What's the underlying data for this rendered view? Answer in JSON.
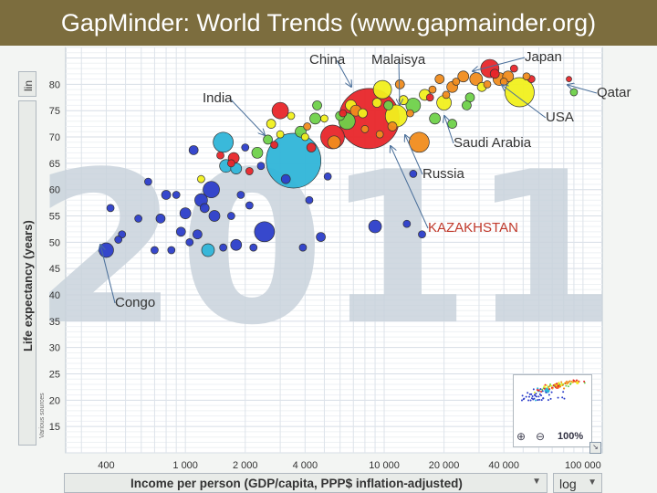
{
  "header": {
    "title": "GapMinder: World Trends (www.gapmainder.org)"
  },
  "controls": {
    "y_scale": "lin",
    "x_scale": "log",
    "x_selector_label": "Income per person (GDP/capita, PPP$ inflation-adjusted)",
    "y_selector_label": "Life expectancy (years)",
    "zoom": "100%",
    "sources_label": "Various sources"
  },
  "colors": {
    "background_year": "#c9d3dc",
    "annotation": "#333333",
    "highlight": "#c0392b",
    "sub_saharan_africa": "#2c3ec9",
    "south_asia": "#2fb5d8",
    "east_asia_pacific": "#e8262a",
    "europe_central_asia": "#f08c1e",
    "middle_east_north_africa": "#6fd14a",
    "america": "#f1f01e"
  },
  "chart_data": {
    "type": "scatter",
    "background_label": "2011",
    "xscale": "log",
    "xlim": [
      250,
      125000
    ],
    "ylim": [
      10,
      87
    ],
    "xticks": [
      400,
      1000,
      2000,
      4000,
      10000,
      20000,
      40000,
      100000
    ],
    "xtick_labels": [
      "400",
      "1 000",
      "2 000",
      "4 000",
      "10 000",
      "20 000",
      "40 000",
      "100 000"
    ],
    "yticks": [
      15,
      20,
      25,
      30,
      35,
      40,
      45,
      50,
      55,
      60,
      65,
      70,
      75,
      80
    ],
    "ytick_labels": [
      "15",
      "20",
      "25",
      "30",
      "35",
      "40",
      "45",
      "50",
      "55",
      "60",
      "65",
      "70",
      "75",
      "80"
    ],
    "xlabel": "Income per person (GDP/capita, PPP$ inflation-adjusted)",
    "ylabel": "Life expectancy (years)",
    "grid": true,
    "points": [
      {
        "x": 3500,
        "y": 65.5,
        "r": 30,
        "c": "south_asia"
      },
      {
        "x": 8400,
        "y": 73.5,
        "r": 33,
        "c": "east_asia_pacific"
      },
      {
        "x": 48000,
        "y": 78.5,
        "r": 16,
        "c": "america"
      },
      {
        "x": 11500,
        "y": 74,
        "r": 12,
        "c": "america"
      },
      {
        "x": 15000,
        "y": 69,
        "r": 11,
        "c": "europe_central_asia"
      },
      {
        "x": 1550,
        "y": 69,
        "r": 11,
        "c": "south_asia"
      },
      {
        "x": 2500,
        "y": 52,
        "r": 11,
        "c": "sub_saharan_africa"
      },
      {
        "x": 5500,
        "y": 70,
        "r": 13,
        "c": "east_asia_pacific"
      },
      {
        "x": 9800,
        "y": 79,
        "r": 10,
        "c": "america"
      },
      {
        "x": 34000,
        "y": 83,
        "r": 10,
        "c": "east_asia_pacific"
      },
      {
        "x": 3000,
        "y": 75,
        "r": 9,
        "c": "east_asia_pacific"
      },
      {
        "x": 1350,
        "y": 60,
        "r": 9,
        "c": "sub_saharan_africa"
      },
      {
        "x": 6500,
        "y": 73,
        "r": 9,
        "c": "middle_east_north_africa"
      },
      {
        "x": 20000,
        "y": 76.5,
        "r": 8,
        "c": "america"
      },
      {
        "x": 14000,
        "y": 76,
        "r": 8,
        "c": "middle_east_north_africa"
      },
      {
        "x": 400,
        "y": 48.5,
        "r": 8,
        "c": "sub_saharan_africa"
      },
      {
        "x": 9000,
        "y": 53,
        "r": 7,
        "c": "sub_saharan_africa"
      },
      {
        "x": 1200,
        "y": 58,
        "r": 7,
        "c": "sub_saharan_africa"
      },
      {
        "x": 1600,
        "y": 64.5,
        "r": 7,
        "c": "south_asia"
      },
      {
        "x": 1300,
        "y": 48.5,
        "r": 7,
        "c": "south_asia"
      },
      {
        "x": 5600,
        "y": 69,
        "r": 7,
        "c": "europe_central_asia"
      },
      {
        "x": 29000,
        "y": 81,
        "r": 7,
        "c": "europe_central_asia"
      },
      {
        "x": 38000,
        "y": 81,
        "r": 7,
        "c": "europe_central_asia"
      },
      {
        "x": 25000,
        "y": 81.5,
        "r": 6,
        "c": "europe_central_asia"
      },
      {
        "x": 42000,
        "y": 81.5,
        "r": 6,
        "c": "europe_central_asia"
      },
      {
        "x": 18000,
        "y": 73.5,
        "r": 6,
        "c": "middle_east_north_africa"
      },
      {
        "x": 16000,
        "y": 78,
        "r": 6,
        "c": "america"
      },
      {
        "x": 22000,
        "y": 79.5,
        "r": 6,
        "c": "europe_central_asia"
      },
      {
        "x": 6800,
        "y": 76,
        "r": 6,
        "c": "america"
      },
      {
        "x": 4500,
        "y": 73.5,
        "r": 6,
        "c": "middle_east_north_africa"
      },
      {
        "x": 7200,
        "y": 75,
        "r": 6,
        "c": "europe_central_asia"
      },
      {
        "x": 12000,
        "y": 80,
        "r": 5,
        "c": "europe_central_asia"
      },
      {
        "x": 19000,
        "y": 81,
        "r": 5,
        "c": "europe_central_asia"
      },
      {
        "x": 31000,
        "y": 79.5,
        "r": 5,
        "c": "america"
      },
      {
        "x": 36000,
        "y": 82,
        "r": 5,
        "c": "east_asia_pacific"
      },
      {
        "x": 27000,
        "y": 77.5,
        "r": 5,
        "c": "middle_east_north_africa"
      },
      {
        "x": 1750,
        "y": 66,
        "r": 6,
        "c": "east_asia_pacific"
      },
      {
        "x": 1100,
        "y": 67.5,
        "r": 5,
        "c": "sub_saharan_africa"
      },
      {
        "x": 1000,
        "y": 55.5,
        "r": 6,
        "c": "sub_saharan_africa"
      },
      {
        "x": 1800,
        "y": 49.5,
        "r": 6,
        "c": "sub_saharan_africa"
      },
      {
        "x": 1400,
        "y": 55,
        "r": 6,
        "c": "sub_saharan_africa"
      },
      {
        "x": 950,
        "y": 52,
        "r": 5,
        "c": "sub_saharan_africa"
      },
      {
        "x": 800,
        "y": 59,
        "r": 5,
        "c": "sub_saharan_africa"
      },
      {
        "x": 750,
        "y": 54.5,
        "r": 5,
        "c": "sub_saharan_africa"
      },
      {
        "x": 1150,
        "y": 51.5,
        "r": 5,
        "c": "sub_saharan_africa"
      },
      {
        "x": 1250,
        "y": 56.5,
        "r": 5,
        "c": "sub_saharan_africa"
      },
      {
        "x": 1900,
        "y": 59,
        "r": 4,
        "c": "sub_saharan_africa"
      },
      {
        "x": 2100,
        "y": 57,
        "r": 4,
        "c": "sub_saharan_africa"
      },
      {
        "x": 1700,
        "y": 55,
        "r": 4,
        "c": "sub_saharan_africa"
      },
      {
        "x": 900,
        "y": 59,
        "r": 4,
        "c": "sub_saharan_africa"
      },
      {
        "x": 650,
        "y": 61.5,
        "r": 4,
        "c": "sub_saharan_africa"
      },
      {
        "x": 580,
        "y": 54.5,
        "r": 4,
        "c": "sub_saharan_africa"
      },
      {
        "x": 480,
        "y": 51.5,
        "r": 4,
        "c": "sub_saharan_africa"
      },
      {
        "x": 460,
        "y": 50.5,
        "r": 4,
        "c": "sub_saharan_africa"
      },
      {
        "x": 420,
        "y": 56.5,
        "r": 4,
        "c": "sub_saharan_africa"
      },
      {
        "x": 700,
        "y": 48.5,
        "r": 4,
        "c": "sub_saharan_africa"
      },
      {
        "x": 850,
        "y": 48.5,
        "r": 4,
        "c": "sub_saharan_africa"
      },
      {
        "x": 1050,
        "y": 50,
        "r": 4,
        "c": "sub_saharan_africa"
      },
      {
        "x": 1550,
        "y": 49,
        "r": 4,
        "c": "sub_saharan_africa"
      },
      {
        "x": 2200,
        "y": 49,
        "r": 4,
        "c": "sub_saharan_africa"
      },
      {
        "x": 4200,
        "y": 58,
        "r": 4,
        "c": "sub_saharan_africa"
      },
      {
        "x": 13000,
        "y": 53.5,
        "r": 4,
        "c": "sub_saharan_africa"
      },
      {
        "x": 15500,
        "y": 51.5,
        "r": 4,
        "c": "sub_saharan_africa"
      },
      {
        "x": 4800,
        "y": 51,
        "r": 5,
        "c": "sub_saharan_africa"
      },
      {
        "x": 3900,
        "y": 49,
        "r": 4,
        "c": "sub_saharan_africa"
      },
      {
        "x": 3200,
        "y": 62,
        "r": 5,
        "c": "sub_saharan_africa"
      },
      {
        "x": 5200,
        "y": 62.5,
        "r": 4,
        "c": "sub_saharan_africa"
      },
      {
        "x": 2400,
        "y": 64.5,
        "r": 4,
        "c": "sub_saharan_africa"
      },
      {
        "x": 14000,
        "y": 63,
        "r": 4,
        "c": "sub_saharan_africa"
      },
      {
        "x": 2000,
        "y": 68,
        "r": 4,
        "c": "sub_saharan_africa"
      },
      {
        "x": 1800,
        "y": 64,
        "r": 6,
        "c": "south_asia"
      },
      {
        "x": 2300,
        "y": 67,
        "r": 6,
        "c": "middle_east_north_africa"
      },
      {
        "x": 2600,
        "y": 69.5,
        "r": 5,
        "c": "middle_east_north_africa"
      },
      {
        "x": 3800,
        "y": 71,
        "r": 6,
        "c": "middle_east_north_africa"
      },
      {
        "x": 4600,
        "y": 76,
        "r": 5,
        "c": "middle_east_north_africa"
      },
      {
        "x": 6000,
        "y": 74,
        "r": 5,
        "c": "middle_east_north_africa"
      },
      {
        "x": 10500,
        "y": 76,
        "r": 5,
        "c": "middle_east_north_africa"
      },
      {
        "x": 22000,
        "y": 72.5,
        "r": 5,
        "c": "middle_east_north_africa"
      },
      {
        "x": 26000,
        "y": 76,
        "r": 5,
        "c": "middle_east_north_africa"
      },
      {
        "x": 90000,
        "y": 78.5,
        "r": 4,
        "c": "middle_east_north_africa"
      },
      {
        "x": 2700,
        "y": 72.5,
        "r": 5,
        "c": "america"
      },
      {
        "x": 3400,
        "y": 74,
        "r": 4,
        "c": "america"
      },
      {
        "x": 4000,
        "y": 70,
        "r": 4,
        "c": "america"
      },
      {
        "x": 5000,
        "y": 73.5,
        "r": 4,
        "c": "america"
      },
      {
        "x": 7800,
        "y": 74.5,
        "r": 5,
        "c": "america"
      },
      {
        "x": 9200,
        "y": 76.5,
        "r": 5,
        "c": "america"
      },
      {
        "x": 12500,
        "y": 77,
        "r": 5,
        "c": "america"
      },
      {
        "x": 1200,
        "y": 62,
        "r": 4,
        "c": "america"
      },
      {
        "x": 3000,
        "y": 70.5,
        "r": 4,
        "c": "america"
      },
      {
        "x": 2800,
        "y": 68.5,
        "r": 4,
        "c": "east_asia_pacific"
      },
      {
        "x": 6200,
        "y": 74.5,
        "r": 4,
        "c": "east_asia_pacific"
      },
      {
        "x": 4300,
        "y": 68,
        "r": 5,
        "c": "east_asia_pacific"
      },
      {
        "x": 1700,
        "y": 65,
        "r": 4,
        "c": "east_asia_pacific"
      },
      {
        "x": 2100,
        "y": 63.5,
        "r": 4,
        "c": "east_asia_pacific"
      },
      {
        "x": 1500,
        "y": 66.5,
        "r": 4,
        "c": "east_asia_pacific"
      },
      {
        "x": 17000,
        "y": 77.5,
        "r": 4,
        "c": "east_asia_pacific"
      },
      {
        "x": 55000,
        "y": 81,
        "r": 4,
        "c": "east_asia_pacific"
      },
      {
        "x": 45000,
        "y": 83,
        "r": 4,
        "c": "east_asia_pacific"
      },
      {
        "x": 85000,
        "y": 81,
        "r": 3,
        "c": "east_asia_pacific"
      },
      {
        "x": 11000,
        "y": 72,
        "r": 5,
        "c": "europe_central_asia"
      },
      {
        "x": 13500,
        "y": 74.5,
        "r": 4,
        "c": "europe_central_asia"
      },
      {
        "x": 9500,
        "y": 70.5,
        "r": 4,
        "c": "europe_central_asia"
      },
      {
        "x": 20500,
        "y": 78,
        "r": 4,
        "c": "europe_central_asia"
      },
      {
        "x": 23000,
        "y": 80.5,
        "r": 4,
        "c": "europe_central_asia"
      },
      {
        "x": 33000,
        "y": 80,
        "r": 4,
        "c": "europe_central_asia"
      },
      {
        "x": 40000,
        "y": 80.5,
        "r": 4,
        "c": "europe_central_asia"
      },
      {
        "x": 8000,
        "y": 71.5,
        "r": 4,
        "c": "europe_central_asia"
      },
      {
        "x": 4100,
        "y": 72,
        "r": 4,
        "c": "europe_central_asia"
      },
      {
        "x": 17500,
        "y": 79,
        "r": 4,
        "c": "europe_central_asia"
      },
      {
        "x": 52000,
        "y": 81.5,
        "r": 4,
        "c": "europe_central_asia"
      }
    ],
    "annotations": [
      {
        "text": "China",
        "label_x": 339,
        "label_y": 70,
        "target_x": 385,
        "target_y": 95,
        "color": "annotation"
      },
      {
        "text": "Malaisya",
        "label_x": 407,
        "label_y": 70,
        "target_x": 438,
        "target_y": 115,
        "color": "annotation"
      },
      {
        "text": "Japan",
        "label_x": 575,
        "label_y": 67,
        "target_x": 518,
        "target_y": 78,
        "color": "annotation"
      },
      {
        "text": "Qatar",
        "label_x": 654,
        "label_y": 106,
        "target_x": 622,
        "target_y": 93,
        "color": "annotation"
      },
      {
        "text": "USA",
        "label_x": 598,
        "label_y": 133,
        "target_x": 550,
        "target_y": 93,
        "color": "annotation"
      },
      {
        "text": "India",
        "label_x": 222,
        "label_y": 112,
        "target_x": 290,
        "target_y": 148,
        "color": "annotation"
      },
      {
        "text": "Saudi Arabia",
        "label_x": 497,
        "label_y": 161,
        "target_x": 487,
        "target_y": 127,
        "color": "annotation"
      },
      {
        "text": "Russia",
        "label_x": 463,
        "label_y": 195,
        "target_x": 444,
        "target_y": 148,
        "color": "annotation"
      },
      {
        "text": "KAZAKHSTAN",
        "label_x": 469,
        "label_y": 254,
        "target_x": 428,
        "target_y": 160,
        "color": "highlight"
      },
      {
        "text": "Congo",
        "label_x": 126,
        "label_y": 336,
        "target_x": 110,
        "target_y": 268,
        "color": "annotation"
      }
    ]
  }
}
